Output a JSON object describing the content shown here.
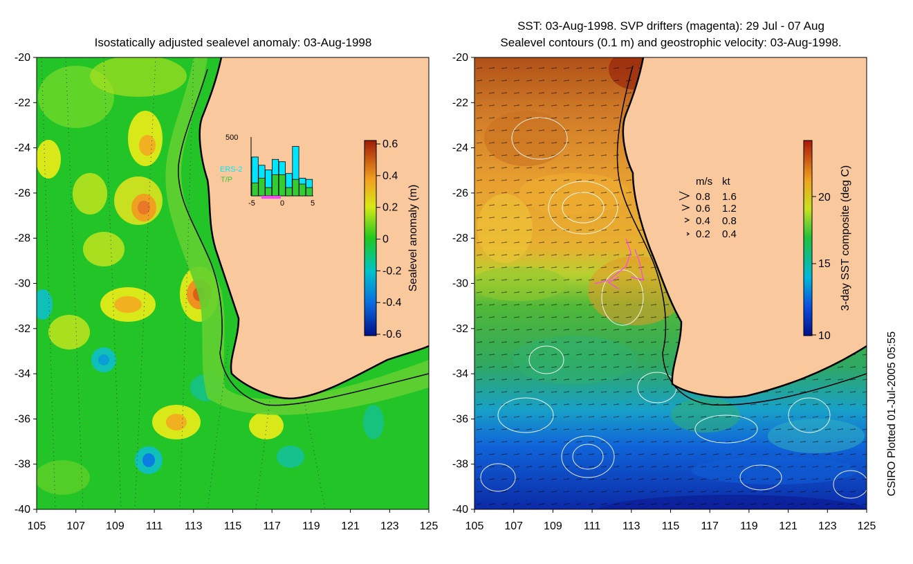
{
  "left_panel": {
    "title": "Isostatically adjusted sealevel anomaly: 03-Aug-1998",
    "y_ticks": [
      "-20",
      "-22",
      "-24",
      "-26",
      "-28",
      "-30",
      "-32",
      "-34",
      "-36",
      "-38",
      "-40"
    ],
    "x_ticks": [
      "105",
      "107",
      "109",
      "111",
      "113",
      "115",
      "117",
      "119",
      "121",
      "123",
      "125"
    ],
    "colorbar": {
      "label": "Sealevel anomaly (m)",
      "ticks": [
        "0.6",
        "0.4",
        "0.2",
        "0",
        "-0.2",
        "-0.4",
        "-0.6"
      ]
    },
    "inset": {
      "max_label": "500",
      "series": [
        "ERS-2",
        "T/P"
      ],
      "x_ticks": [
        "-5",
        "0",
        "5"
      ],
      "ers2_counts": [
        330,
        260,
        220,
        310,
        290,
        190,
        420,
        150,
        140
      ],
      "tp_counts": [
        110,
        150,
        70,
        180,
        180,
        70,
        140,
        100,
        70
      ]
    }
  },
  "right_panel": {
    "title_line1": "SST: 03-Aug-1998. SVP drifters (magenta): 29 Jul - 07 Aug",
    "title_line2": "Sealevel contours (0.1 m) and geostrophic velocity: 03-Aug-1998.",
    "y_ticks": [
      "-20",
      "-22",
      "-24",
      "-26",
      "-28",
      "-30",
      "-32",
      "-34",
      "-36",
      "-38",
      "-40"
    ],
    "x_ticks": [
      "105",
      "107",
      "109",
      "111",
      "113",
      "115",
      "117",
      "119",
      "121",
      "123",
      "125"
    ],
    "colorbar": {
      "label": "3-day SST composite (deg C)",
      "ticks": [
        "20",
        "15",
        "10"
      ]
    },
    "velocity_legend": {
      "header_ms": "m/s",
      "header_kt": "kt",
      "rows": [
        {
          "ms": "0.8",
          "kt": "1.6"
        },
        {
          "ms": "0.6",
          "kt": "1.2"
        },
        {
          "ms": "0.4",
          "kt": "0.8"
        },
        {
          "ms": "0.2",
          "kt": "0.4"
        }
      ]
    }
  },
  "credit": "CSIRO Plotted 01-Jul-2005 05:55",
  "colors": {
    "land": "#f9c89c",
    "coast": "#000000",
    "drifter": "#ff40ff",
    "ers2": "#00e5ff",
    "tp": "#33cc33"
  }
}
